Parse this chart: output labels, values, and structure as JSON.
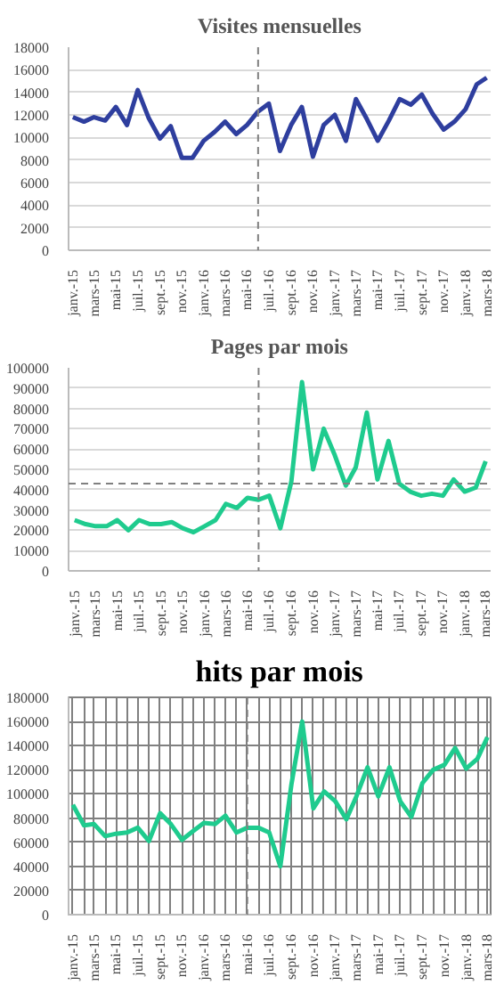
{
  "chart_data": [
    {
      "type": "line",
      "title": "Visites mensuelles",
      "x": [
        "2015-01",
        "2015-02",
        "2015-03",
        "2015-04",
        "2015-05",
        "2015-06",
        "2015-07",
        "2015-08",
        "2015-09",
        "2015-10",
        "2015-11",
        "2015-12",
        "2016-01",
        "2016-02",
        "2016-03",
        "2016-04",
        "2016-05",
        "2016-06",
        "2016-07",
        "2016-08",
        "2016-09",
        "2016-10",
        "2016-11",
        "2016-12",
        "2017-01",
        "2017-02",
        "2017-03",
        "2017-04",
        "2017-05",
        "2017-06",
        "2017-07",
        "2017-08",
        "2017-09",
        "2017-10",
        "2017-11",
        "2017-12",
        "2018-01",
        "2018-02",
        "2018-03"
      ],
      "series": [
        {
          "color": "#2e3e9e",
          "values": [
            11800,
            11400,
            11800,
            11500,
            12700,
            11100,
            14200,
            11700,
            9900,
            11000,
            8200,
            8200,
            9700,
            10500,
            11400,
            10300,
            11100,
            12300,
            13000,
            8800,
            11100,
            12700,
            8300,
            11100,
            12000,
            9700,
            13400,
            11600,
            9700,
            11500,
            13400,
            12900,
            13800,
            12100,
            10700,
            11400,
            12500,
            14700,
            15300
          ]
        }
      ],
      "xlim": [
        "2014-12-20",
        "2018-03-12"
      ],
      "xticks": [
        {
          "value": "2015-01",
          "label": "janv.-15"
        },
        {
          "value": "2015-03",
          "label": "mars-15"
        },
        {
          "value": "2015-05",
          "label": "mai-15"
        },
        {
          "value": "2015-07",
          "label": "juil.-15"
        },
        {
          "value": "2015-09",
          "label": "sept.-15"
        },
        {
          "value": "2015-11",
          "label": "nov.-15"
        },
        {
          "value": "2016-01",
          "label": "janv.-16"
        },
        {
          "value": "2016-03",
          "label": "mars-16"
        },
        {
          "value": "2016-05",
          "label": "mai-16"
        },
        {
          "value": "2016-07",
          "label": "juil.-16"
        },
        {
          "value": "2016-09",
          "label": "sept.-16"
        },
        {
          "value": "2016-11",
          "label": "nov.-16"
        },
        {
          "value": "2017-01",
          "label": "janv.-17"
        },
        {
          "value": "2017-03",
          "label": "mars-17"
        },
        {
          "value": "2017-05",
          "label": "mai-17"
        },
        {
          "value": "2017-07",
          "label": "juil.-17"
        },
        {
          "value": "2017-09",
          "label": "sept.-17"
        },
        {
          "value": "2017-11",
          "label": "nov.-17"
        },
        {
          "value": "2018-01",
          "label": "janv.-18"
        },
        {
          "value": "2018-03",
          "label": "mars-18"
        }
      ],
      "ylim": [
        0,
        18000
      ],
      "yticks": [
        0,
        2000,
        4000,
        6000,
        8000,
        10000,
        12000,
        14000,
        16000,
        18000
      ],
      "grid": "y",
      "line_style": "solid",
      "ref_lines": [
        {
          "axis": "x",
          "value": "2016-06",
          "color": "#808080",
          "line_style": "dashed"
        }
      ]
    },
    {
      "type": "line",
      "title": "Pages par mois",
      "x": [
        "2015-01",
        "2015-02",
        "2015-03",
        "2015-04",
        "2015-05",
        "2015-06",
        "2015-07",
        "2015-08",
        "2015-09",
        "2015-10",
        "2015-11",
        "2015-12",
        "2016-01",
        "2016-02",
        "2016-03",
        "2016-04",
        "2016-05",
        "2016-06",
        "2016-07",
        "2016-08",
        "2016-09",
        "2016-10",
        "2016-11",
        "2016-12",
        "2017-01",
        "2017-02",
        "2017-03",
        "2017-04",
        "2017-05",
        "2017-06",
        "2017-07",
        "2017-08",
        "2017-09",
        "2017-10",
        "2017-11",
        "2017-12",
        "2018-01",
        "2018-02",
        "2018-03"
      ],
      "series": [
        {
          "color": "#1fcb8e",
          "values": [
            25000,
            23000,
            22000,
            22000,
            25000,
            20000,
            25000,
            23000,
            23000,
            24000,
            21000,
            19000,
            22000,
            25000,
            33000,
            31000,
            36000,
            35000,
            37000,
            21000,
            44000,
            93000,
            50000,
            70000,
            57000,
            42000,
            51000,
            78000,
            45000,
            64000,
            43000,
            39000,
            37000,
            38000,
            37000,
            45000,
            39000,
            41000,
            54000
          ]
        }
      ],
      "xlim": [
        "2014-12-15",
        "2018-03-15"
      ],
      "xticks": [
        {
          "value": "2015-01",
          "label": "janv.-15"
        },
        {
          "value": "2015-03",
          "label": "mars-15"
        },
        {
          "value": "2015-05",
          "label": "mai-15"
        },
        {
          "value": "2015-07",
          "label": "juil.-15"
        },
        {
          "value": "2015-09",
          "label": "sept.-15"
        },
        {
          "value": "2015-11",
          "label": "nov.-15"
        },
        {
          "value": "2016-01",
          "label": "janv.-16"
        },
        {
          "value": "2016-03",
          "label": "mars-16"
        },
        {
          "value": "2016-05",
          "label": "mai-16"
        },
        {
          "value": "2016-07",
          "label": "juil.-16"
        },
        {
          "value": "2016-09",
          "label": "sept.-16"
        },
        {
          "value": "2016-11",
          "label": "nov.-16"
        },
        {
          "value": "2017-01",
          "label": "janv.-17"
        },
        {
          "value": "2017-03",
          "label": "mars-17"
        },
        {
          "value": "2017-05",
          "label": "mai-17"
        },
        {
          "value": "2017-07",
          "label": "juil.-17"
        },
        {
          "value": "2017-09",
          "label": "sept.-17"
        },
        {
          "value": "2017-11",
          "label": "nov.-17"
        },
        {
          "value": "2018-01",
          "label": "janv.-18"
        },
        {
          "value": "2018-03",
          "label": "mars-18"
        }
      ],
      "ylim": [
        0,
        100000
      ],
      "yticks": [
        0,
        10000,
        20000,
        30000,
        40000,
        50000,
        60000,
        70000,
        80000,
        90000,
        100000
      ],
      "grid": "y",
      "line_style": "solid",
      "ref_lines": [
        {
          "axis": "x",
          "value": "2016-06",
          "color": "#808080",
          "line_style": "dashed"
        },
        {
          "axis": "y",
          "value": 43000,
          "color": "#808080",
          "line_style": "dashed"
        }
      ]
    },
    {
      "type": "line",
      "title": "hits par mois",
      "x": [
        "2015-01",
        "2015-02",
        "2015-03",
        "2015-04",
        "2015-05",
        "2015-06",
        "2015-07",
        "2015-08",
        "2015-09",
        "2015-10",
        "2015-11",
        "2015-12",
        "2016-01",
        "2016-02",
        "2016-03",
        "2016-04",
        "2016-05",
        "2016-06",
        "2016-07",
        "2016-08",
        "2016-09",
        "2016-10",
        "2016-11",
        "2016-12",
        "2017-01",
        "2017-02",
        "2017-03",
        "2017-04",
        "2017-05",
        "2017-06",
        "2017-07",
        "2017-08",
        "2017-09",
        "2017-10",
        "2017-11",
        "2017-12",
        "2018-01",
        "2018-02",
        "2018-03"
      ],
      "series": [
        {
          "color": "#1fcb8e",
          "values": [
            91000,
            74000,
            75000,
            65000,
            67000,
            68000,
            72000,
            61000,
            84000,
            75000,
            62000,
            69000,
            76000,
            75000,
            82000,
            68000,
            72000,
            72000,
            68000,
            40000,
            108000,
            160000,
            88000,
            102000,
            94000,
            79000,
            98000,
            122000,
            98000,
            122000,
            94000,
            81000,
            109000,
            120000,
            124000,
            138000,
            121000,
            129000,
            147000
          ]
        }
      ],
      "xlim": [
        "2014-12-20",
        "2018-03-10"
      ],
      "xticks": [
        {
          "value": "2015-01",
          "label": "janv.-15"
        },
        {
          "value": "2015-03",
          "label": "mars-15"
        },
        {
          "value": "2015-05",
          "label": "mai-15"
        },
        {
          "value": "2015-07",
          "label": "juil.-15"
        },
        {
          "value": "2015-09",
          "label": "sept.-15"
        },
        {
          "value": "2015-11",
          "label": "nov.-15"
        },
        {
          "value": "2016-01",
          "label": "janv.-16"
        },
        {
          "value": "2016-03",
          "label": "mars-16"
        },
        {
          "value": "2016-05",
          "label": "mai-16"
        },
        {
          "value": "2016-07",
          "label": "juil.-16"
        },
        {
          "value": "2016-09",
          "label": "sept.-16"
        },
        {
          "value": "2016-11",
          "label": "nov.-16"
        },
        {
          "value": "2017-01",
          "label": "janv.-17"
        },
        {
          "value": "2017-03",
          "label": "mars-17"
        },
        {
          "value": "2017-05",
          "label": "mai-17"
        },
        {
          "value": "2017-07",
          "label": "juil.-17"
        },
        {
          "value": "2017-09",
          "label": "sept.-17"
        },
        {
          "value": "2017-11",
          "label": "nov.-17"
        },
        {
          "value": "2018-01",
          "label": "janv.-18"
        },
        {
          "value": "2018-03",
          "label": "mars-18"
        }
      ],
      "ylim": [
        0,
        180000
      ],
      "yticks": [
        0,
        20000,
        40000,
        60000,
        80000,
        100000,
        120000,
        140000,
        160000,
        180000
      ],
      "grid": true,
      "line_style": "solid",
      "ref_lines": [
        {
          "axis": "x",
          "value": "2016-05",
          "color": "#808080",
          "line_style": "dashed"
        }
      ]
    }
  ]
}
